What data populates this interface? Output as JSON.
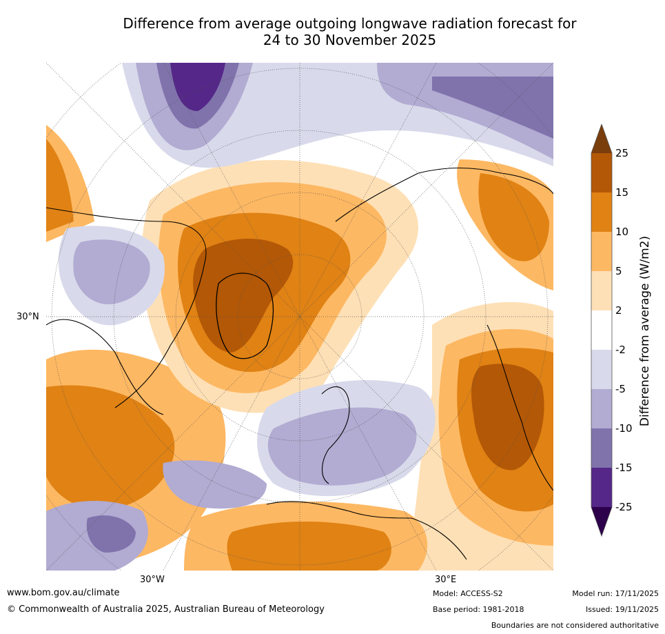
{
  "title": {
    "line1": "Difference from average outgoing longwave radiation forecast for",
    "line2": "24 to 30 November 2025"
  },
  "map": {
    "projection": "North polar stereographic",
    "lat_label": "30°N",
    "lon_labels": {
      "west": "30°W",
      "east": "30°E"
    }
  },
  "legend": {
    "title": "Difference from average (W/m2)",
    "ticks": [
      "25",
      "15",
      "10",
      "5",
      "2",
      "-2",
      "-5",
      "-10",
      "-15",
      "-25"
    ],
    "colors": [
      "#7a3d0c",
      "#b35806",
      "#e08214",
      "#fdb863",
      "#fee0b6",
      "#ffffff",
      "#d8daeb",
      "#b2abd2",
      "#8073ac",
      "#542788",
      "#2d004b"
    ]
  },
  "footer": {
    "website": "www.bom.gov.au/climate",
    "copyright": "© Commonwealth of Australia 2025, Australian Bureau of Meteorology",
    "model": "Model: ACCESS-S2",
    "base_period": "Base period: 1981-2018",
    "model_run": "Model run: 17/11/2025",
    "issued": "Issued: 19/11/2025",
    "disclaimer": "Boundaries are not considered authoritative"
  }
}
